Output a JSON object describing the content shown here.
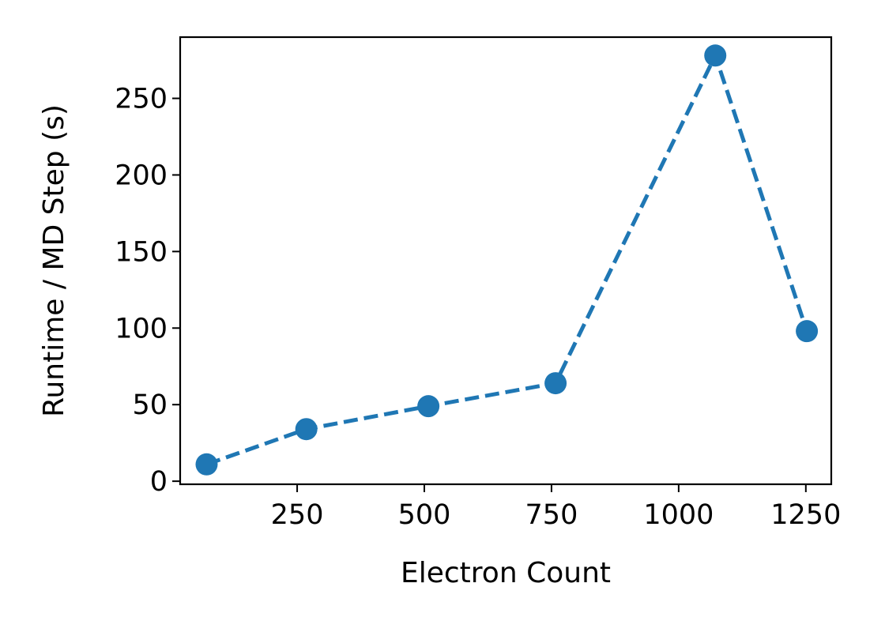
{
  "chart_data": {
    "type": "line",
    "title": "",
    "xlabel": "Electron Count",
    "ylabel": "Runtime / MD Step (s)",
    "xlim": [
      20,
      1300
    ],
    "ylim": [
      -2,
      290
    ],
    "xticks": [
      250,
      500,
      750,
      1000,
      1250
    ],
    "xtick_labels": [
      "250",
      "500",
      "750",
      "1000",
      "1250"
    ],
    "yticks": [
      0,
      50,
      100,
      150,
      200,
      250
    ],
    "ytick_labels": [
      "0",
      "50",
      "100",
      "150",
      "200",
      "250"
    ],
    "grid": false,
    "line_style": "dashed",
    "marker": "circle",
    "color": "#1f77b4",
    "series": [
      {
        "x": [
          72,
          268,
          508,
          758,
          1072,
          1252
        ],
        "y": [
          11,
          34,
          49,
          64,
          278,
          98
        ]
      }
    ]
  }
}
